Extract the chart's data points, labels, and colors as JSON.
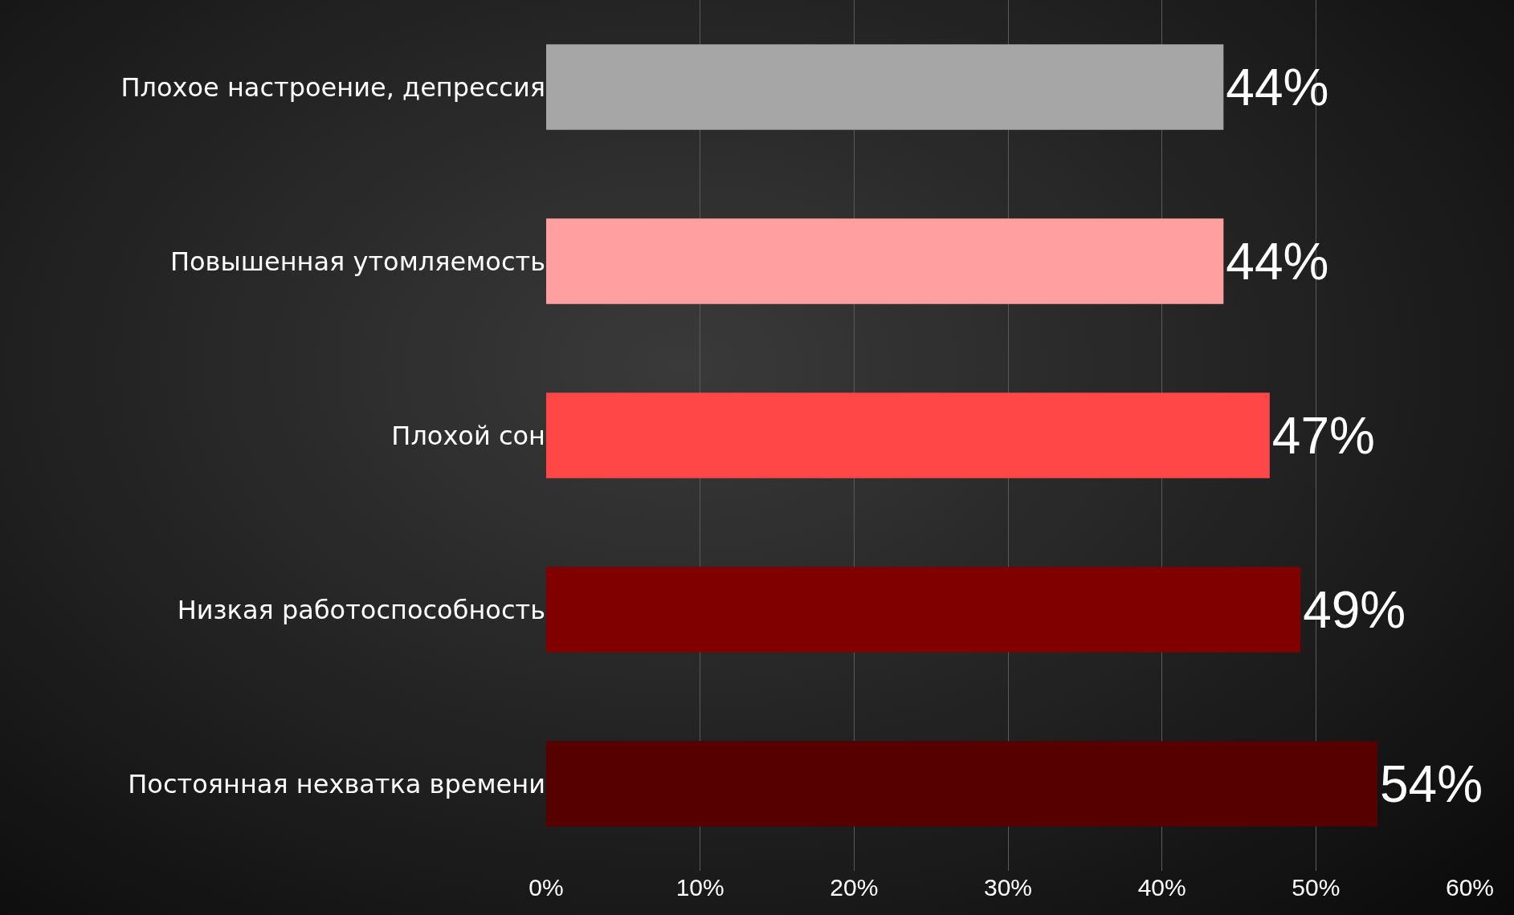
{
  "chart_data": {
    "type": "bar",
    "orientation": "horizontal",
    "categories": [
      "Плохое настроение, депрессия",
      "Повышенная утомляемость",
      "Плохой сон",
      "Низкая работоспособность",
      "Постоянная нехватка времени"
    ],
    "values": [
      44,
      44,
      47,
      49,
      54
    ],
    "colors": [
      "#a6a6a6",
      "#ff9f9f",
      "#ff4747",
      "#800000",
      "#560000"
    ],
    "value_labels": [
      "44%",
      "44%",
      "47%",
      "49%",
      "54%"
    ],
    "xlim": [
      0,
      60
    ],
    "xticks": [
      {
        "value": 0,
        "label": "0%"
      },
      {
        "value": 10,
        "label": "10%"
      },
      {
        "value": 20,
        "label": "20%"
      },
      {
        "value": 30,
        "label": "30%"
      },
      {
        "value": 40,
        "label": "40%"
      },
      {
        "value": 50,
        "label": "50%"
      },
      {
        "value": 60,
        "label": "60%"
      }
    ],
    "grid": "x"
  }
}
